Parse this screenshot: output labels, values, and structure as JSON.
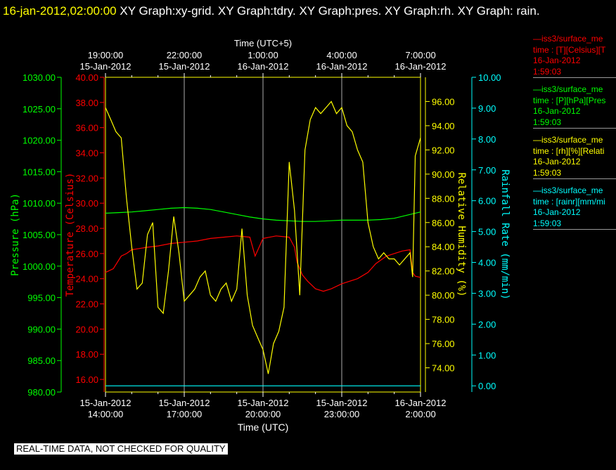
{
  "header": {
    "timestamp": "16-jan-2012,02:00:00",
    "titles": " XY Graph:xy-grid.  XY Graph:tdry.  XY Graph:pres.  XY Graph:rh.  XY Graph: rain."
  },
  "footer": {
    "notice": "REAL-TIME DATA, NOT CHECKED FOR QUALITY"
  },
  "colors": {
    "temperature": "#ff0000",
    "pressure": "#00ff00",
    "humidity": "#ffff00",
    "rain": "#00ffff",
    "frame": "#ffff00"
  },
  "legend": [
    {
      "line1": "—iss3/surface_me",
      "line2": "time : [T][Celsius][T",
      "line3": "16-Jan-2012",
      "line4": "1:59:03",
      "color": "#ff0000"
    },
    {
      "line1": "—iss3/surface_me",
      "line2": "time : [P][hPa][Pres",
      "line3": "16-Jan-2012",
      "line4": "1:59:03",
      "color": "#00ff00"
    },
    {
      "line1": "—iss3/surface_me",
      "line2": "time : [rh][%][Relati",
      "line3": "16-Jan-2012",
      "line4": "1:59:03",
      "color": "#ffff00"
    },
    {
      "line1": "—iss3/surface_me",
      "line2": "time : [rainr][mm/mi",
      "line3": "16-Jan-2012",
      "line4": "1:59:03",
      "color": "#00ffff"
    }
  ],
  "chart_data": {
    "type": "line",
    "x_bottom": {
      "label": "Time (UTC)",
      "ticks": [
        {
          "date": "15-Jan-2012",
          "time": "14:00:00"
        },
        {
          "date": "15-Jan-2012",
          "time": "17:00:00"
        },
        {
          "date": "15-Jan-2012",
          "time": "20:00:00"
        },
        {
          "date": "15-Jan-2012",
          "time": "23:00:00"
        },
        {
          "date": "16-Jan-2012",
          "time": "2:00:00"
        }
      ]
    },
    "x_top": {
      "label": "Time (UTC+5)",
      "ticks": [
        {
          "date": "15-Jan-2012",
          "time": "19:00:00"
        },
        {
          "date": "15-Jan-2012",
          "time": "22:00:00"
        },
        {
          "date": "16-Jan-2012",
          "time": "1:00:00"
        },
        {
          "date": "16-Jan-2012",
          "time": "4:00:00"
        },
        {
          "date": "16-Jan-2012",
          "time": "7:00:00"
        }
      ]
    },
    "axes": {
      "pressure": {
        "label": "Pressure (hPa)",
        "range": [
          980,
          1030
        ],
        "ticks": [
          "980.00",
          "985.00",
          "990.00",
          "995.00",
          "1000.00",
          "1005.00",
          "1010.00",
          "1015.00",
          "1020.00",
          "1025.00",
          "1030.00"
        ]
      },
      "temperature": {
        "label": "Temperature (Celsius)",
        "range": [
          15,
          40
        ],
        "ticks": [
          "16.00",
          "18.00",
          "20.00",
          "22.00",
          "24.00",
          "26.00",
          "28.00",
          "30.00",
          "32.00",
          "34.00",
          "36.00",
          "38.00",
          "40.00"
        ]
      },
      "humidity": {
        "label": "Relative Humidity (%)",
        "range": [
          72,
          98
        ],
        "ticks": [
          "74.00",
          "76.00",
          "78.00",
          "80.00",
          "82.00",
          "84.00",
          "86.00",
          "88.00",
          "90.00",
          "92.00",
          "94.00",
          "96.00"
        ]
      },
      "rain": {
        "label": "Rainfall Rate (mm/min)",
        "range": [
          -0.2,
          10
        ],
        "ticks": [
          "0.00",
          "1.00",
          "2.00",
          "3.00",
          "4.00",
          "5.00",
          "6.00",
          "7.00",
          "8.00",
          "9.00",
          "10.00"
        ]
      }
    },
    "x_range_hours": [
      14,
      26
    ],
    "grid": true,
    "series": [
      {
        "name": "iss3/surface_me",
        "axis": "temperature",
        "x": [
          14,
          14.3,
          14.6,
          14.8,
          15,
          15.3,
          15.6,
          16,
          16.5,
          17,
          17.5,
          18,
          18.5,
          19,
          19.5,
          19.7,
          20,
          20.5,
          21,
          21.2,
          21.3,
          21.5,
          21.7,
          22,
          22.3,
          22.6,
          23,
          23.3,
          23.6,
          24,
          24.3,
          24.7,
          25,
          25.3,
          25.6,
          25.7,
          25.8,
          26
        ],
        "y": [
          24.5,
          24.8,
          25.8,
          26.0,
          26.3,
          26.4,
          26.5,
          26.6,
          26.8,
          26.9,
          27.0,
          27.2,
          27.3,
          27.4,
          27.3,
          25.8,
          27.2,
          27.4,
          27.3,
          26.5,
          25.3,
          24.3,
          23.8,
          23.2,
          23.0,
          23.2,
          23.6,
          23.8,
          24.0,
          24.5,
          25.2,
          25.8,
          26.0,
          26.2,
          26.3,
          24.5,
          24.2,
          24.1
        ]
      },
      {
        "name": "iss3/surface_me",
        "axis": "pressure",
        "x": [
          14,
          14.5,
          15,
          15.5,
          16,
          16.5,
          17,
          17.5,
          18,
          18.5,
          19,
          19.5,
          20,
          20.5,
          21,
          21.5,
          22,
          22.5,
          23,
          23.5,
          24,
          24.5,
          25,
          25.5,
          26
        ],
        "y": [
          1008.4,
          1008.5,
          1008.6,
          1008.8,
          1009.0,
          1009.2,
          1009.3,
          1009.2,
          1009.0,
          1008.6,
          1008.2,
          1007.8,
          1007.5,
          1007.3,
          1007.2,
          1007.1,
          1007.1,
          1007.2,
          1007.3,
          1007.3,
          1007.3,
          1007.4,
          1007.6,
          1008.1,
          1008.6
        ]
      },
      {
        "name": "iss3/surface_me",
        "axis": "humidity",
        "x": [
          14,
          14.2,
          14.4,
          14.6,
          14.8,
          15,
          15.2,
          15.4,
          15.6,
          15.8,
          16,
          16.2,
          16.4,
          16.6,
          16.8,
          17,
          17.2,
          17.4,
          17.6,
          17.8,
          18,
          18.2,
          18.4,
          18.6,
          18.8,
          19,
          19.2,
          19.4,
          19.6,
          19.8,
          20,
          20.2,
          20.4,
          20.6,
          20.8,
          21,
          21.2,
          21.4,
          21.6,
          21.8,
          22,
          22.2,
          22.4,
          22.6,
          22.8,
          23,
          23.2,
          23.4,
          23.6,
          23.8,
          24,
          24.2,
          24.4,
          24.6,
          24.8,
          25,
          25.2,
          25.4,
          25.6,
          25.7,
          25.8,
          26
        ],
        "y": [
          95.5,
          94.5,
          93.5,
          93.0,
          88.0,
          84.0,
          80.5,
          81.0,
          85.0,
          86.0,
          79.0,
          78.5,
          82.0,
          86.5,
          83.5,
          79.5,
          80.0,
          80.5,
          81.5,
          82.0,
          80.0,
          79.5,
          80.5,
          81.0,
          79.5,
          80.5,
          85.5,
          80.0,
          77.5,
          76.5,
          75.5,
          73.5,
          76.0,
          77.0,
          79.0,
          91.0,
          87.0,
          80.0,
          92.0,
          94.5,
          95.5,
          95.0,
          95.5,
          96.0,
          95.0,
          95.5,
          94.0,
          93.5,
          92.0,
          91.0,
          86.0,
          84.0,
          83.0,
          83.5,
          83.0,
          83.0,
          82.5,
          83.0,
          83.5,
          81.5,
          91.5,
          93.0
        ]
      },
      {
        "name": "iss3/surface_me",
        "axis": "rain",
        "x": [
          14,
          26
        ],
        "y": [
          0,
          0
        ]
      }
    ]
  }
}
